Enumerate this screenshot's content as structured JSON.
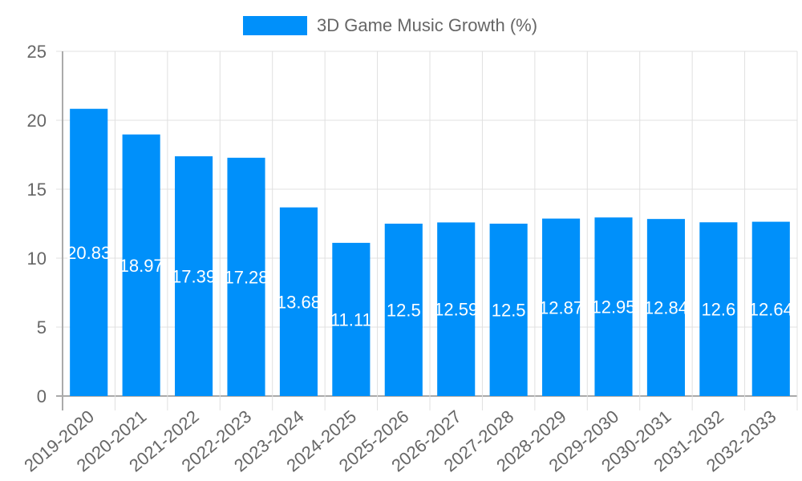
{
  "chart_data": {
    "type": "bar",
    "title": "",
    "legend": [
      "3D Game Music Growth (%)"
    ],
    "legend_position": "top",
    "xlabel": "",
    "ylabel": "",
    "ylim": [
      0,
      25
    ],
    "yticks": [
      0,
      5,
      10,
      15,
      20,
      25
    ],
    "grid": true,
    "categories": [
      "2019-2020",
      "2020-2021",
      "2021-2022",
      "2022-2023",
      "2023-2024",
      "2024-2025",
      "2025-2026",
      "2026-2027",
      "2027-2028",
      "2028-2029",
      "2029-2030",
      "2030-2031",
      "2031-2032",
      "2032-2033"
    ],
    "series": [
      {
        "name": "3D Game Music Growth (%)",
        "color": "#0090fa",
        "values": [
          20.83,
          18.97,
          17.39,
          17.28,
          13.68,
          11.11,
          12.5,
          12.59,
          12.5,
          12.87,
          12.95,
          12.84,
          12.6,
          12.64
        ]
      }
    ],
    "data_labels": [
      "20.83",
      "18.97",
      "17.39",
      "17.28",
      "13.68",
      "11.11",
      "12.5",
      "12.59",
      "12.5",
      "12.87",
      "12.95",
      "12.84",
      "12.6",
      "12.64"
    ]
  },
  "legend": {
    "label": "3D Game Music Growth (%)",
    "color": "#0090fa"
  }
}
